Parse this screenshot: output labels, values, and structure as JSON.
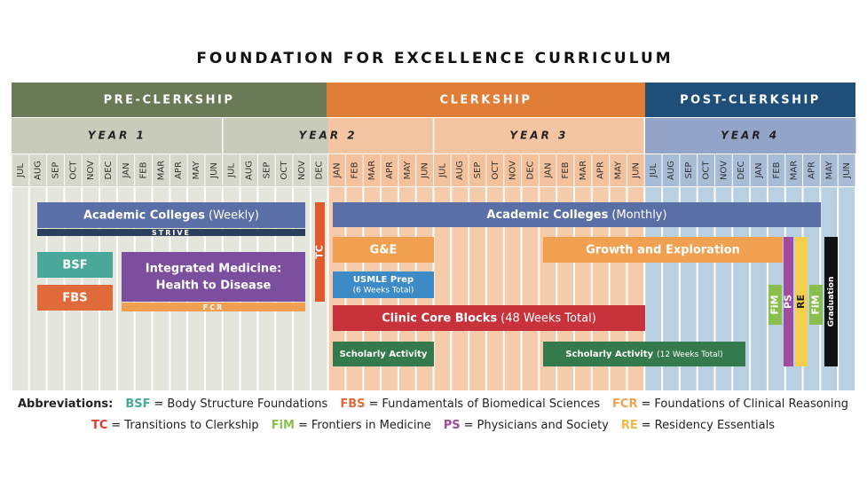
{
  "title": "FOUNDATION FOR EXCELLENCE CURRICULUM",
  "phases": [
    "PRE-CLERKSHIP",
    "CLERKSHIP",
    "POST-CLERKSHIP"
  ],
  "years": [
    "YEAR 1",
    "YEAR 2",
    "YEAR 3",
    "YEAR 4"
  ],
  "months": [
    "JUL",
    "AUG",
    "SEP",
    "OCT",
    "NOV",
    "DEC",
    "JAN",
    "FEB",
    "MAR",
    "APR",
    "MAY",
    "JUN",
    "JUL",
    "AUG",
    "SEP",
    "OCT",
    "NOV",
    "DEC",
    "JAN",
    "FEB",
    "MAR",
    "APR",
    "MAY",
    "JUN",
    "JUL",
    "AUG",
    "SEP",
    "OCT",
    "NOV",
    "DEC",
    "JAN",
    "FEB",
    "MAR",
    "APR",
    "MAY",
    "JUN",
    "JUL",
    "AUG",
    "SEP",
    "OCT",
    "NOV",
    "DEC",
    "JAN",
    "FEB",
    "MAR",
    "APR",
    "MAY",
    "JUN"
  ],
  "bars": [
    {
      "label": "Academic Colleges",
      "note": "(Weekly)"
    },
    {
      "label": "STRIVE"
    },
    {
      "label": "TC"
    },
    {
      "label": "BSF"
    },
    {
      "label": "FBS"
    },
    {
      "label": "Integrated Medicine:",
      "note": "Health to Disease"
    },
    {
      "label": "FCR"
    },
    {
      "label": "Academic Colleges",
      "note": "(Monthly)"
    },
    {
      "label": "G&E"
    },
    {
      "label": "Growth and Exploration"
    },
    {
      "label": "USMLE Prep",
      "note": "(6 Weeks Total)"
    },
    {
      "label": "Clinic Core Blocks",
      "note": "(48 Weeks Total)"
    },
    {
      "label": "Scholarly Activity"
    },
    {
      "label": "Scholarly Activity",
      "note": "(12 Weeks Total)"
    },
    {
      "label": "FiM"
    },
    {
      "label": "PS"
    },
    {
      "label": "RE"
    },
    {
      "label": "FiM"
    },
    {
      "label": "Graduation"
    }
  ],
  "abbreviations_label": "Abbreviations:",
  "equals": "=",
  "abbreviations": [
    {
      "abbr": "BSF",
      "meaning": "Body Structure Foundations"
    },
    {
      "abbr": "FBS",
      "meaning": "Fundamentals of Biomedical Sciences"
    },
    {
      "abbr": "FCR",
      "meaning": "Foundations of Clinical Reasoning"
    },
    {
      "abbr": "TC",
      "meaning": "Transitions to Clerkship"
    },
    {
      "abbr": "FiM",
      "meaning": "Frontiers in Medicine"
    },
    {
      "abbr": "PS",
      "meaning": "Physicians and Society"
    },
    {
      "abbr": "RE",
      "meaning": "Residency Essentials"
    }
  ]
}
